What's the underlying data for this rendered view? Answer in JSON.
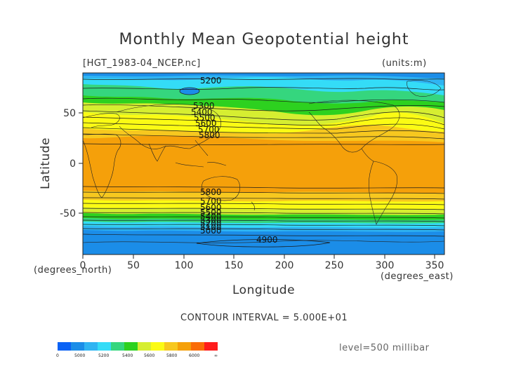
{
  "title": "Monthly Mean Geopotential height",
  "file_label": "[HGT_1983-04_NCEP.nc]",
  "units_label": "(units:m)",
  "x_axis": {
    "label": "Longitude",
    "unit_label": "(degrees_east)",
    "ticks": [
      "0",
      "50",
      "100",
      "150",
      "200",
      "250",
      "300",
      "350"
    ]
  },
  "y_axis": {
    "label": "Latitude",
    "unit_label": "(degrees_north)",
    "ticks": [
      "50",
      "0",
      "-50"
    ]
  },
  "contour_interval": "CONTOUR INTERVAL = 5.000E+01",
  "level": "level=500 millibar",
  "contour_labels": [
    "5200",
    "5300",
    "5400",
    "5500",
    "5600",
    "5700",
    "5800",
    "5800",
    "5700",
    "5600",
    "5500",
    "5400",
    "5300",
    "5200",
    "5100",
    "5000",
    "4900"
  ],
  "colorbar": {
    "labels": [
      "0",
      "5000",
      "5200",
      "5400",
      "5600",
      "5800",
      "6000",
      "∞"
    ],
    "colors": [
      "#0a62f5",
      "#1b8de8",
      "#2fb4f2",
      "#34dcf7",
      "#35d67e",
      "#2dd11f",
      "#d6ee31",
      "#fbfb14",
      "#f7c81f",
      "#f5a00a",
      "#fa6c07",
      "#ff1c1c"
    ]
  }
}
